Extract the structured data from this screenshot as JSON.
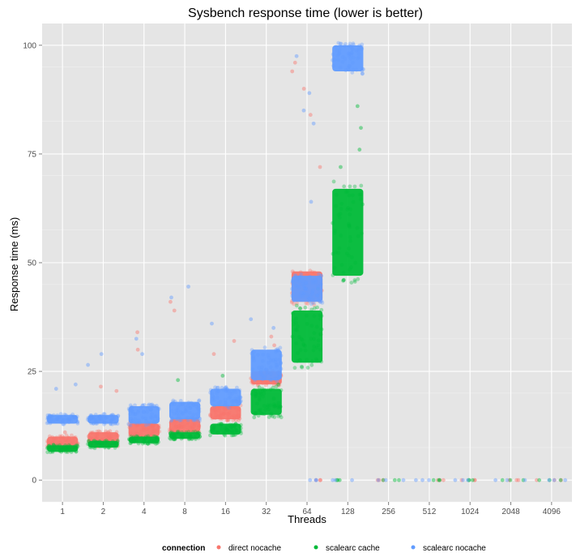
{
  "chart_data": {
    "type": "scatter",
    "title": "Sysbench response time (lower is better)",
    "xlabel": "Threads",
    "ylabel": "Response time (ms)",
    "categories": [
      "1",
      "2",
      "4",
      "8",
      "16",
      "32",
      "64",
      "128",
      "256",
      "512",
      "1024",
      "2048",
      "4096"
    ],
    "y_ticks": [
      0,
      25,
      50,
      75,
      100
    ],
    "ylim": [
      -5,
      105
    ],
    "grid": true,
    "background": "#e5e5e5",
    "legend": {
      "title": "connection",
      "position": "bottom"
    },
    "series": [
      {
        "name": "direct nocache",
        "color": "#f8766d",
        "band_low": [
          7,
          8,
          10,
          11,
          14,
          22,
          41,
          null,
          null,
          null,
          null,
          null,
          null
        ],
        "band_high": [
          10,
          11,
          13,
          14,
          17,
          25,
          48,
          null,
          null,
          null,
          null,
          null,
          null
        ],
        "zeros": [
          false,
          false,
          false,
          false,
          false,
          false,
          true,
          false,
          true,
          true,
          true,
          true,
          true
        ],
        "outliers": [
          [
            0,
            11
          ],
          [
            1,
            21.5
          ],
          [
            1,
            20.5
          ],
          [
            2,
            34
          ],
          [
            2,
            30
          ],
          [
            3,
            39
          ],
          [
            3,
            41
          ],
          [
            4,
            32
          ],
          [
            4,
            29
          ],
          [
            5,
            31
          ],
          [
            5,
            33
          ],
          [
            6,
            72
          ],
          [
            6,
            84
          ],
          [
            6,
            90
          ],
          [
            6,
            94
          ],
          [
            6,
            96
          ]
        ]
      },
      {
        "name": "scalearc cache",
        "color": "#00ba38",
        "band_low": [
          6.5,
          7.5,
          8.5,
          9.5,
          10.5,
          15,
          27,
          47,
          null,
          null,
          null,
          null,
          null
        ],
        "band_high": [
          8,
          9,
          10,
          11,
          13,
          21,
          39,
          67,
          null,
          null,
          null,
          null,
          null
        ],
        "zeros": [
          false,
          false,
          false,
          false,
          false,
          false,
          false,
          true,
          true,
          true,
          true,
          true,
          true
        ],
        "outliers": [
          [
            3,
            23
          ],
          [
            4,
            24
          ],
          [
            5,
            22
          ],
          [
            6,
            44
          ],
          [
            7,
            72
          ],
          [
            7,
            76
          ],
          [
            7,
            81
          ],
          [
            7,
            86
          ]
        ]
      },
      {
        "name": "scalearc nocache",
        "color": "#619cff",
        "band_low": [
          13,
          13,
          13,
          14,
          17,
          23,
          41,
          94,
          null,
          null,
          null,
          null,
          null
        ],
        "band_high": [
          15,
          15,
          17,
          18,
          21,
          30,
          47,
          100,
          null,
          null,
          null,
          null,
          null
        ],
        "zeros": [
          false,
          false,
          false,
          false,
          false,
          false,
          true,
          true,
          true,
          true,
          true,
          true,
          true
        ],
        "outliers": [
          [
            0,
            21
          ],
          [
            0,
            22
          ],
          [
            1,
            26.5
          ],
          [
            1,
            29
          ],
          [
            2,
            32.5
          ],
          [
            2,
            29
          ],
          [
            3,
            44.5
          ],
          [
            3,
            42
          ],
          [
            4,
            36
          ],
          [
            5,
            35
          ],
          [
            5,
            37
          ],
          [
            6,
            64
          ],
          [
            6,
            82
          ],
          [
            6,
            85
          ],
          [
            6,
            89
          ],
          [
            6,
            97.5
          ]
        ]
      }
    ]
  }
}
